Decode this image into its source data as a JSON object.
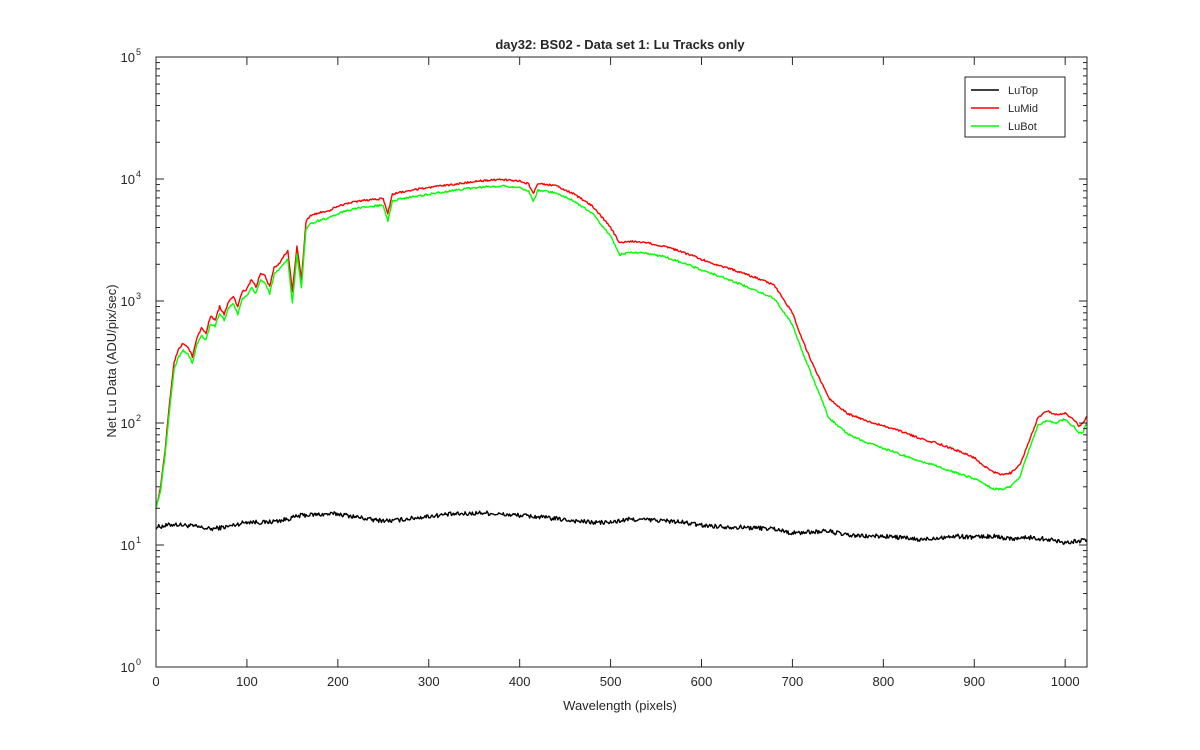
{
  "chart_data": {
    "type": "line",
    "title": "day32: BS02 - Data set 1: Lu Tracks only",
    "xlabel": "Wavelength (pixels)",
    "ylabel": "Net Lu Data (ADU/pix/sec)",
    "xlim": [
      0,
      1024
    ],
    "ylim": [
      1,
      100000
    ],
    "yscale": "log",
    "x_ticks": [
      0,
      100,
      200,
      300,
      400,
      500,
      600,
      700,
      800,
      900,
      1000
    ],
    "y_ticks": [
      {
        "value": 1,
        "base": "10",
        "exp": "0"
      },
      {
        "value": 10,
        "base": "10",
        "exp": "1"
      },
      {
        "value": 100,
        "base": "10",
        "exp": "2"
      },
      {
        "value": 1000,
        "base": "10",
        "exp": "3"
      },
      {
        "value": 10000,
        "base": "10",
        "exp": "4"
      },
      {
        "value": 100000,
        "base": "10",
        "exp": "5"
      }
    ],
    "legend_position": "top-right",
    "series": [
      {
        "name": "LuTop",
        "color": "#000000",
        "x": [
          0,
          20,
          40,
          60,
          80,
          100,
          120,
          140,
          160,
          180,
          200,
          220,
          240,
          260,
          280,
          300,
          320,
          340,
          360,
          380,
          400,
          420,
          440,
          460,
          480,
          500,
          520,
          540,
          560,
          580,
          600,
          620,
          640,
          660,
          680,
          700,
          720,
          740,
          760,
          780,
          800,
          820,
          840,
          860,
          880,
          900,
          920,
          940,
          960,
          980,
          1000,
          1024
        ],
        "values": [
          14,
          14.8,
          14.3,
          13.5,
          14.2,
          15.5,
          15.3,
          16,
          17.5,
          17.8,
          18,
          17,
          16,
          15.8,
          16.5,
          17.2,
          17.8,
          18,
          18.4,
          17.8,
          17.5,
          17,
          16.4,
          15.8,
          15.3,
          15.3,
          16.2,
          16.1,
          15.8,
          15.3,
          14.5,
          14.2,
          14,
          13.8,
          13.6,
          12.5,
          12.8,
          13,
          12,
          11.8,
          11.8,
          11.5,
          11,
          11.5,
          11.8,
          11.6,
          11.8,
          11.3,
          11.5,
          11.2,
          10.5,
          11
        ]
      },
      {
        "name": "LuMid",
        "color": "#ff0000",
        "x": [
          0,
          5,
          10,
          15,
          20,
          25,
          30,
          35,
          40,
          45,
          50,
          55,
          60,
          65,
          70,
          75,
          80,
          85,
          90,
          95,
          100,
          105,
          110,
          115,
          120,
          125,
          130,
          135,
          140,
          145,
          150,
          155,
          160,
          165,
          170,
          180,
          190,
          200,
          210,
          220,
          230,
          240,
          250,
          255,
          260,
          270,
          280,
          290,
          300,
          320,
          340,
          360,
          380,
          400,
          410,
          415,
          420,
          440,
          460,
          480,
          500,
          510,
          520,
          540,
          560,
          580,
          600,
          620,
          640,
          660,
          680,
          700,
          710,
          720,
          740,
          760,
          780,
          800,
          820,
          840,
          860,
          880,
          900,
          910,
          920,
          930,
          940,
          950,
          960,
          970,
          980,
          990,
          1000,
          1010,
          1015,
          1020,
          1024
        ],
        "values": [
          20,
          30,
          60,
          150,
          320,
          400,
          450,
          420,
          350,
          500,
          600,
          550,
          750,
          700,
          900,
          780,
          1000,
          1100,
          900,
          1200,
          1250,
          1500,
          1300,
          1700,
          1600,
          1300,
          1900,
          2000,
          2300,
          2600,
          1200,
          2800,
          1500,
          4500,
          5000,
          5300,
          5500,
          6000,
          6300,
          6500,
          6700,
          6800,
          6900,
          5200,
          7500,
          7800,
          8000,
          8300,
          8500,
          8900,
          9300,
          9700,
          9900,
          9600,
          9100,
          7500,
          9200,
          8800,
          7500,
          6000,
          4000,
          3000,
          3100,
          3000,
          2800,
          2500,
          2200,
          1950,
          1750,
          1550,
          1350,
          800,
          500,
          330,
          160,
          120,
          105,
          95,
          85,
          75,
          68,
          60,
          52,
          45,
          40,
          38,
          39,
          45,
          70,
          110,
          125,
          118,
          120,
          105,
          95,
          100,
          115
        ]
      },
      {
        "name": "LuBot",
        "color": "#00ff00",
        "x": [
          0,
          5,
          10,
          15,
          20,
          25,
          30,
          35,
          40,
          45,
          50,
          55,
          60,
          65,
          70,
          75,
          80,
          85,
          90,
          95,
          100,
          105,
          110,
          115,
          120,
          125,
          130,
          135,
          140,
          145,
          150,
          155,
          160,
          165,
          170,
          180,
          190,
          200,
          210,
          220,
          230,
          240,
          250,
          255,
          260,
          270,
          280,
          290,
          300,
          320,
          340,
          360,
          380,
          400,
          410,
          415,
          420,
          440,
          460,
          480,
          500,
          510,
          520,
          540,
          560,
          580,
          600,
          620,
          640,
          660,
          680,
          700,
          710,
          720,
          740,
          760,
          780,
          800,
          820,
          840,
          860,
          880,
          900,
          910,
          920,
          930,
          940,
          950,
          960,
          970,
          980,
          990,
          1000,
          1010,
          1015,
          1020,
          1024
        ],
        "values": [
          20,
          28,
          55,
          130,
          280,
          350,
          390,
          370,
          310,
          440,
          520,
          480,
          650,
          620,
          800,
          700,
          880,
          950,
          780,
          1050,
          1100,
          1300,
          1150,
          1500,
          1400,
          1150,
          1650,
          1800,
          2000,
          2200,
          950,
          2400,
          1300,
          3900,
          4300,
          4600,
          4800,
          5200,
          5500,
          5700,
          5900,
          6000,
          6100,
          4500,
          6600,
          6900,
          7100,
          7300,
          7500,
          7900,
          8300,
          8600,
          8800,
          8500,
          8000,
          6500,
          8100,
          7700,
          6600,
          5200,
          3400,
          2400,
          2500,
          2450,
          2300,
          2050,
          1800,
          1600,
          1400,
          1220,
          1050,
          640,
          400,
          260,
          110,
          82,
          70,
          62,
          55,
          49,
          44,
          39,
          35,
          32,
          29,
          28.5,
          30,
          36,
          60,
          95,
          105,
          100,
          108,
          92,
          82,
          85,
          100
        ]
      }
    ]
  }
}
